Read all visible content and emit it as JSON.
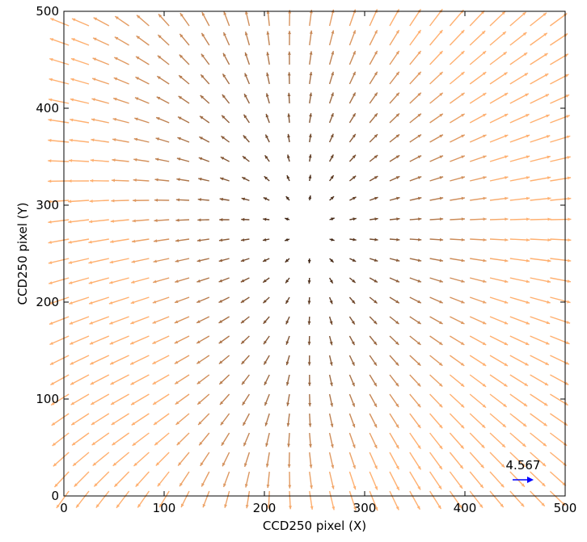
{
  "chart_data": {
    "type": "quiver",
    "xlabel": "CCD250 pixel (X)",
    "ylabel": "CCD250 pixel (Y)",
    "xlim": [
      0,
      500
    ],
    "ylim": [
      0,
      500
    ],
    "xticks": [
      "0",
      "100",
      "200",
      "300",
      "400",
      "500"
    ],
    "yticks": [
      "0",
      "100",
      "200",
      "300",
      "400",
      "500"
    ],
    "grid": false,
    "key": {
      "label": "4.567",
      "value": 4.567,
      "color": "#0000ff"
    },
    "colors": {
      "low": "#3d2414",
      "high": "#ffb070"
    },
    "field": {
      "x0": 5,
      "dx": 20,
      "nx": 25,
      "y0": 5,
      "dy": 20,
      "ny": 25,
      "divergence_center": [
        215,
        285
      ],
      "vortex_center_lower_left": [
        5,
        5
      ]
    }
  }
}
